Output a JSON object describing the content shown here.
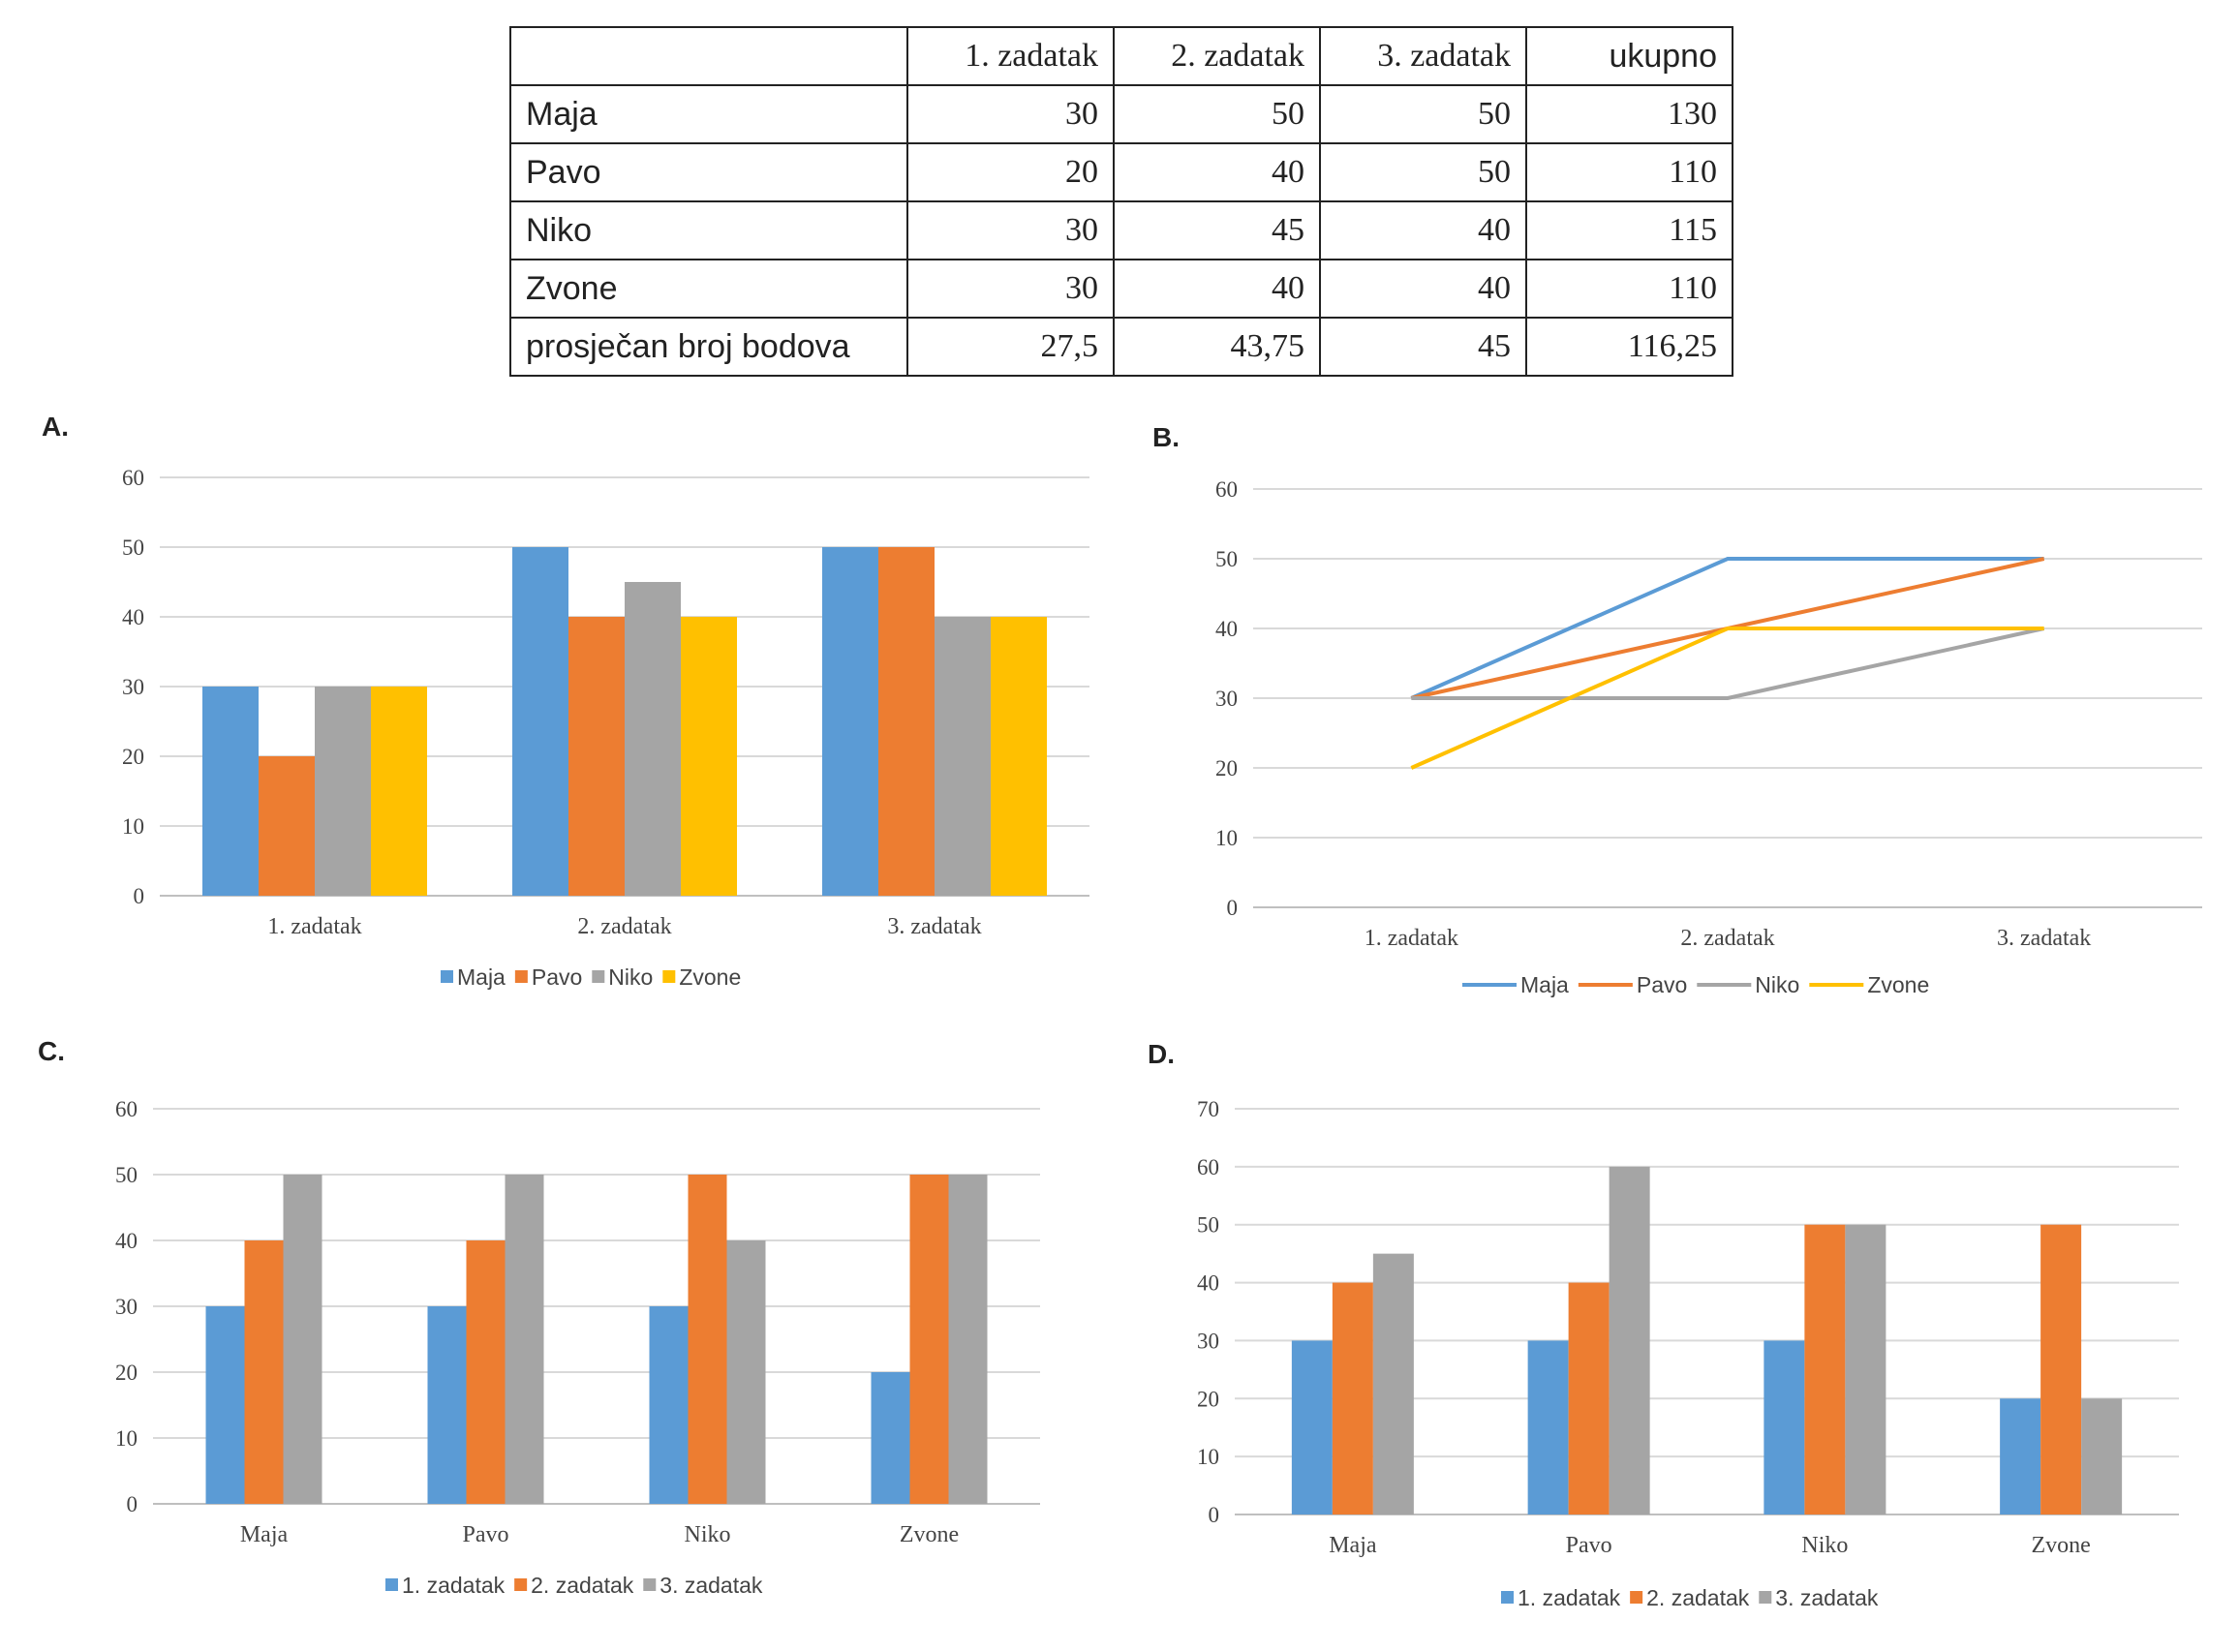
{
  "table": {
    "headers": [
      "",
      "1. zadatak",
      "2. zadatak",
      "3. zadatak",
      "ukupno"
    ],
    "rows": [
      {
        "name": "Maja",
        "cells": [
          "30",
          "50",
          "50",
          "130"
        ]
      },
      {
        "name": "Pavo",
        "cells": [
          "20",
          "40",
          "50",
          "110"
        ]
      },
      {
        "name": "Niko",
        "cells": [
          "30",
          "45",
          "40",
          "115"
        ]
      },
      {
        "name": "Zvone",
        "cells": [
          "30",
          "40",
          "40",
          "110"
        ]
      },
      {
        "name": "prosječan broj bodova",
        "cells": [
          "27,5",
          "43,75",
          "45",
          "116,25"
        ]
      }
    ]
  },
  "colors": {
    "blue": "#5b9bd5",
    "orange": "#ed7d31",
    "gray": "#a5a5a5",
    "yellow": "#ffc000",
    "grid": "#d9d9d9",
    "axis": "#bfbfbf"
  },
  "chart_data": [
    {
      "label": "A.",
      "type": "bar",
      "categories": [
        "1. zadatak",
        "2. zadatak",
        "3. zadatak"
      ],
      "series": [
        {
          "name": "Maja",
          "values": [
            30,
            50,
            50
          ]
        },
        {
          "name": "Pavo",
          "values": [
            20,
            40,
            50
          ]
        },
        {
          "name": "Niko",
          "values": [
            30,
            45,
            40
          ]
        },
        {
          "name": "Zvone",
          "values": [
            30,
            40,
            40
          ]
        }
      ],
      "yticks": [
        "0",
        "10",
        "20",
        "30",
        "40",
        "50",
        "60"
      ],
      "ylim": [
        0,
        60
      ],
      "legend": "bottom"
    },
    {
      "label": "B.",
      "type": "line",
      "categories": [
        "1. zadatak",
        "2. zadatak",
        "3. zadatak"
      ],
      "series": [
        {
          "name": "Maja",
          "values": [
            30,
            50,
            50
          ]
        },
        {
          "name": "Pavo",
          "values": [
            30,
            40,
            50
          ]
        },
        {
          "name": "Niko",
          "values": [
            30,
            30,
            40
          ]
        },
        {
          "name": "Zvone",
          "values": [
            20,
            40,
            40
          ]
        }
      ],
      "yticks": [
        "0",
        "10",
        "20",
        "30",
        "40",
        "50",
        "60"
      ],
      "ylim": [
        0,
        60
      ],
      "legend": "bottom"
    },
    {
      "label": "C.",
      "type": "bar",
      "categories": [
        "Maja",
        "Pavo",
        "Niko",
        "Zvone"
      ],
      "series": [
        {
          "name": "1. zadatak",
          "values": [
            30,
            30,
            30,
            20
          ]
        },
        {
          "name": "2. zadatak",
          "values": [
            40,
            40,
            50,
            50
          ]
        },
        {
          "name": "3. zadatak",
          "values": [
            50,
            50,
            40,
            50
          ]
        }
      ],
      "yticks": [
        "0",
        "10",
        "20",
        "30",
        "40",
        "50",
        "60"
      ],
      "ylim": [
        0,
        60
      ],
      "legend": "bottom"
    },
    {
      "label": "D.",
      "type": "bar",
      "categories": [
        "Maja",
        "Pavo",
        "Niko",
        "Zvone"
      ],
      "series": [
        {
          "name": "1. zadatak",
          "values": [
            30,
            30,
            30,
            20
          ]
        },
        {
          "name": "2. zadatak",
          "values": [
            40,
            40,
            50,
            50
          ]
        },
        {
          "name": "3. zadatak",
          "values": [
            45,
            60,
            50,
            20
          ]
        }
      ],
      "yticks": [
        "0",
        "10",
        "20",
        "30",
        "40",
        "50",
        "60",
        "70"
      ],
      "ylim": [
        0,
        70
      ],
      "legend": "bottom"
    }
  ]
}
